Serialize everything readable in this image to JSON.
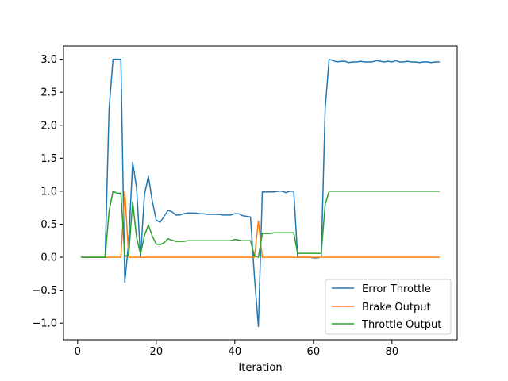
{
  "chart_data": {
    "type": "line",
    "title": "",
    "xlabel": "Iteration",
    "ylabel": "",
    "xlim": [
      -3.6,
      96.6
    ],
    "ylim": [
      -1.25,
      3.2
    ],
    "xticks": [
      "0",
      "20",
      "40",
      "60",
      "80"
    ],
    "xtick_values": [
      0,
      20,
      40,
      60,
      80
    ],
    "yticks": [
      "−1.0",
      "−0.5",
      "0.0",
      "0.5",
      "1.0",
      "1.5",
      "2.0",
      "2.5",
      "3.0"
    ],
    "ytick_values": [
      -1.0,
      -0.5,
      0.0,
      0.5,
      1.0,
      1.5,
      2.0,
      2.5,
      3.0
    ],
    "grid": false,
    "legend_position": "lower-right",
    "x": [
      1,
      2,
      3,
      4,
      5,
      6,
      7,
      8,
      9,
      10,
      11,
      12,
      13,
      14,
      15,
      16,
      17,
      18,
      19,
      20,
      21,
      22,
      23,
      24,
      25,
      26,
      27,
      28,
      29,
      30,
      31,
      32,
      33,
      34,
      35,
      36,
      37,
      38,
      39,
      40,
      41,
      42,
      43,
      44,
      45,
      46,
      47,
      48,
      49,
      50,
      51,
      52,
      53,
      54,
      55,
      56,
      57,
      58,
      59,
      60,
      61,
      62,
      63,
      64,
      65,
      66,
      67,
      68,
      69,
      70,
      71,
      72,
      73,
      74,
      75,
      76,
      77,
      78,
      79,
      80,
      81,
      82,
      83,
      84,
      85,
      86,
      87,
      88,
      89,
      90,
      91,
      92
    ],
    "series": [
      {
        "name": "Error Throttle",
        "color": "#1f77b4",
        "values": [
          0,
          0,
          0,
          0,
          0,
          0,
          0,
          2.25,
          3.0,
          3.0,
          3.0,
          -0.38,
          0.25,
          1.44,
          1.05,
          0,
          0.95,
          1.23,
          0.85,
          0.56,
          0.53,
          0.62,
          0.71,
          0.69,
          0.64,
          0.64,
          0.66,
          0.67,
          0.67,
          0.67,
          0.66,
          0.66,
          0.65,
          0.65,
          0.65,
          0.65,
          0.64,
          0.64,
          0.64,
          0.66,
          0.66,
          0.63,
          0.62,
          0.61,
          -0.3,
          -1.05,
          0.99,
          0.99,
          0.99,
          0.99,
          1.0,
          1.0,
          0.98,
          1.0,
          1.0,
          0.0,
          0.0,
          0.0,
          0.0,
          -0.01,
          -0.01,
          0.0,
          2.25,
          3.0,
          2.98,
          2.96,
          2.97,
          2.97,
          2.95,
          2.96,
          2.96,
          2.97,
          2.96,
          2.96,
          2.96,
          2.98,
          2.97,
          2.96,
          2.97,
          2.96,
          2.98,
          2.96,
          2.96,
          2.97,
          2.96,
          2.96,
          2.95,
          2.96,
          2.96,
          2.95,
          2.96,
          2.96
        ]
      },
      {
        "name": "Brake Output",
        "color": "#ff7f0e",
        "values": [
          0,
          0,
          0,
          0,
          0,
          0,
          0,
          0,
          0,
          0,
          0,
          1.0,
          0.0,
          0,
          0,
          0,
          0,
          0,
          0,
          0,
          0,
          0,
          0,
          0,
          0,
          0,
          0,
          0,
          0,
          0,
          0,
          0,
          0,
          0,
          0,
          0,
          0,
          0,
          0,
          0,
          0,
          0,
          0,
          0,
          0,
          0.55,
          0,
          0,
          0,
          0,
          0,
          0,
          0,
          0,
          0,
          0,
          0,
          0,
          0,
          0,
          0,
          0,
          0,
          0,
          0,
          0,
          0,
          0,
          0,
          0,
          0,
          0,
          0,
          0,
          0,
          0,
          0,
          0,
          0,
          0,
          0,
          0,
          0,
          0,
          0,
          0,
          0,
          0,
          0,
          0,
          0,
          0
        ]
      },
      {
        "name": "Throttle Output",
        "color": "#2ca02c",
        "values": [
          0,
          0,
          0,
          0,
          0,
          0,
          0,
          0.7,
          1.0,
          0.97,
          0.97,
          0.01,
          0.04,
          0.84,
          0.3,
          0.05,
          0.33,
          0.49,
          0.32,
          0.2,
          0.19,
          0.22,
          0.28,
          0.26,
          0.24,
          0.24,
          0.24,
          0.25,
          0.25,
          0.25,
          0.25,
          0.25,
          0.25,
          0.25,
          0.25,
          0.25,
          0.25,
          0.25,
          0.25,
          0.27,
          0.26,
          0.25,
          0.25,
          0.25,
          0.02,
          0,
          0.36,
          0.36,
          0.36,
          0.37,
          0.37,
          0.37,
          0.37,
          0.37,
          0.37,
          0.06,
          0.06,
          0.06,
          0.06,
          0.06,
          0.06,
          0.06,
          0.8,
          1.0,
          1.0,
          1.0,
          1.0,
          1.0,
          1.0,
          1.0,
          1.0,
          1.0,
          1.0,
          1.0,
          1.0,
          1.0,
          1.0,
          1.0,
          1.0,
          1.0,
          1.0,
          1.0,
          1.0,
          1.0,
          1.0,
          1.0,
          1.0,
          1.0,
          1.0,
          1.0,
          1.0,
          1.0
        ]
      }
    ]
  }
}
